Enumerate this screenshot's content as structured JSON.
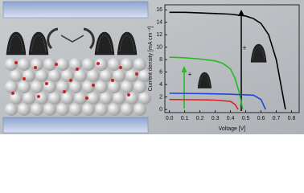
{
  "chart_data": {
    "type": "line",
    "xlabel": "Voltage [V]",
    "ylabel": "Current density [mA cm⁻²]",
    "xlim": [
      -0.03,
      0.85
    ],
    "ylim": [
      -0.5,
      16.8
    ],
    "xticks": [
      {
        "value": 0,
        "label": "0.0"
      },
      0.1,
      0.2,
      0.3,
      0.4,
      0.5,
      0.6,
      0.7,
      0.8
    ],
    "yticks": [
      0,
      2,
      4,
      6,
      8,
      10,
      12,
      14,
      16
    ],
    "annotations": [
      "+",
      "+"
    ],
    "series": [
      {
        "color": "#000000",
        "x": [
          0,
          0.1,
          0.2,
          0.3,
          0.4,
          0.5,
          0.55,
          0.6,
          0.65,
          0.7,
          0.73,
          0.76
        ],
        "values": [
          15.6,
          15.6,
          15.5,
          15.4,
          15.3,
          15.0,
          14.6,
          13.8,
          12.0,
          8.0,
          4.0,
          0
        ]
      },
      {
        "color": "#22bb22",
        "x": [
          0,
          0.1,
          0.2,
          0.3,
          0.35,
          0.4,
          0.43,
          0.46,
          0.48
        ],
        "values": [
          8.4,
          8.3,
          8.1,
          7.8,
          7.4,
          6.5,
          5.0,
          2.5,
          0
        ]
      },
      {
        "color": "#2244dd",
        "x": [
          0,
          0.2,
          0.4,
          0.55,
          0.6,
          0.63
        ],
        "values": [
          2.6,
          2.55,
          2.45,
          2.3,
          1.6,
          0
        ]
      },
      {
        "color": "#dd2222",
        "x": [
          0,
          0.2,
          0.3,
          0.4,
          0.43,
          0.45
        ],
        "values": [
          1.6,
          1.55,
          1.5,
          1.3,
          0.8,
          0
        ]
      }
    ]
  }
}
